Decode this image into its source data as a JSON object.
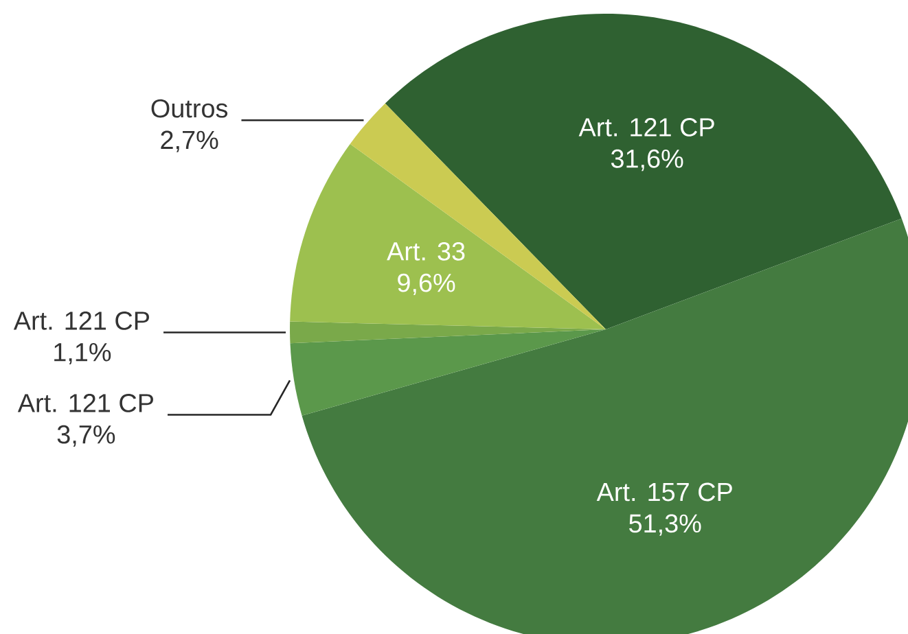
{
  "chart_data": {
    "type": "pie",
    "categories": [
      "Art. 121 CP",
      "Art. 157 CP",
      "Art. 121 CP",
      "Art. 121 CP",
      "Art. 33",
      "Outros"
    ],
    "values": [
      31.6,
      51.3,
      3.7,
      1.1,
      9.6,
      2.7
    ],
    "colors": [
      "#2f6131",
      "#447b40",
      "#5b984b",
      "#7aa94a",
      "#9dc04f",
      "#cbcb52"
    ],
    "value_labels": [
      "31,6%",
      "51,3%",
      "3,7%",
      "1,1%",
      "9,6%",
      "2,7%"
    ]
  }
}
